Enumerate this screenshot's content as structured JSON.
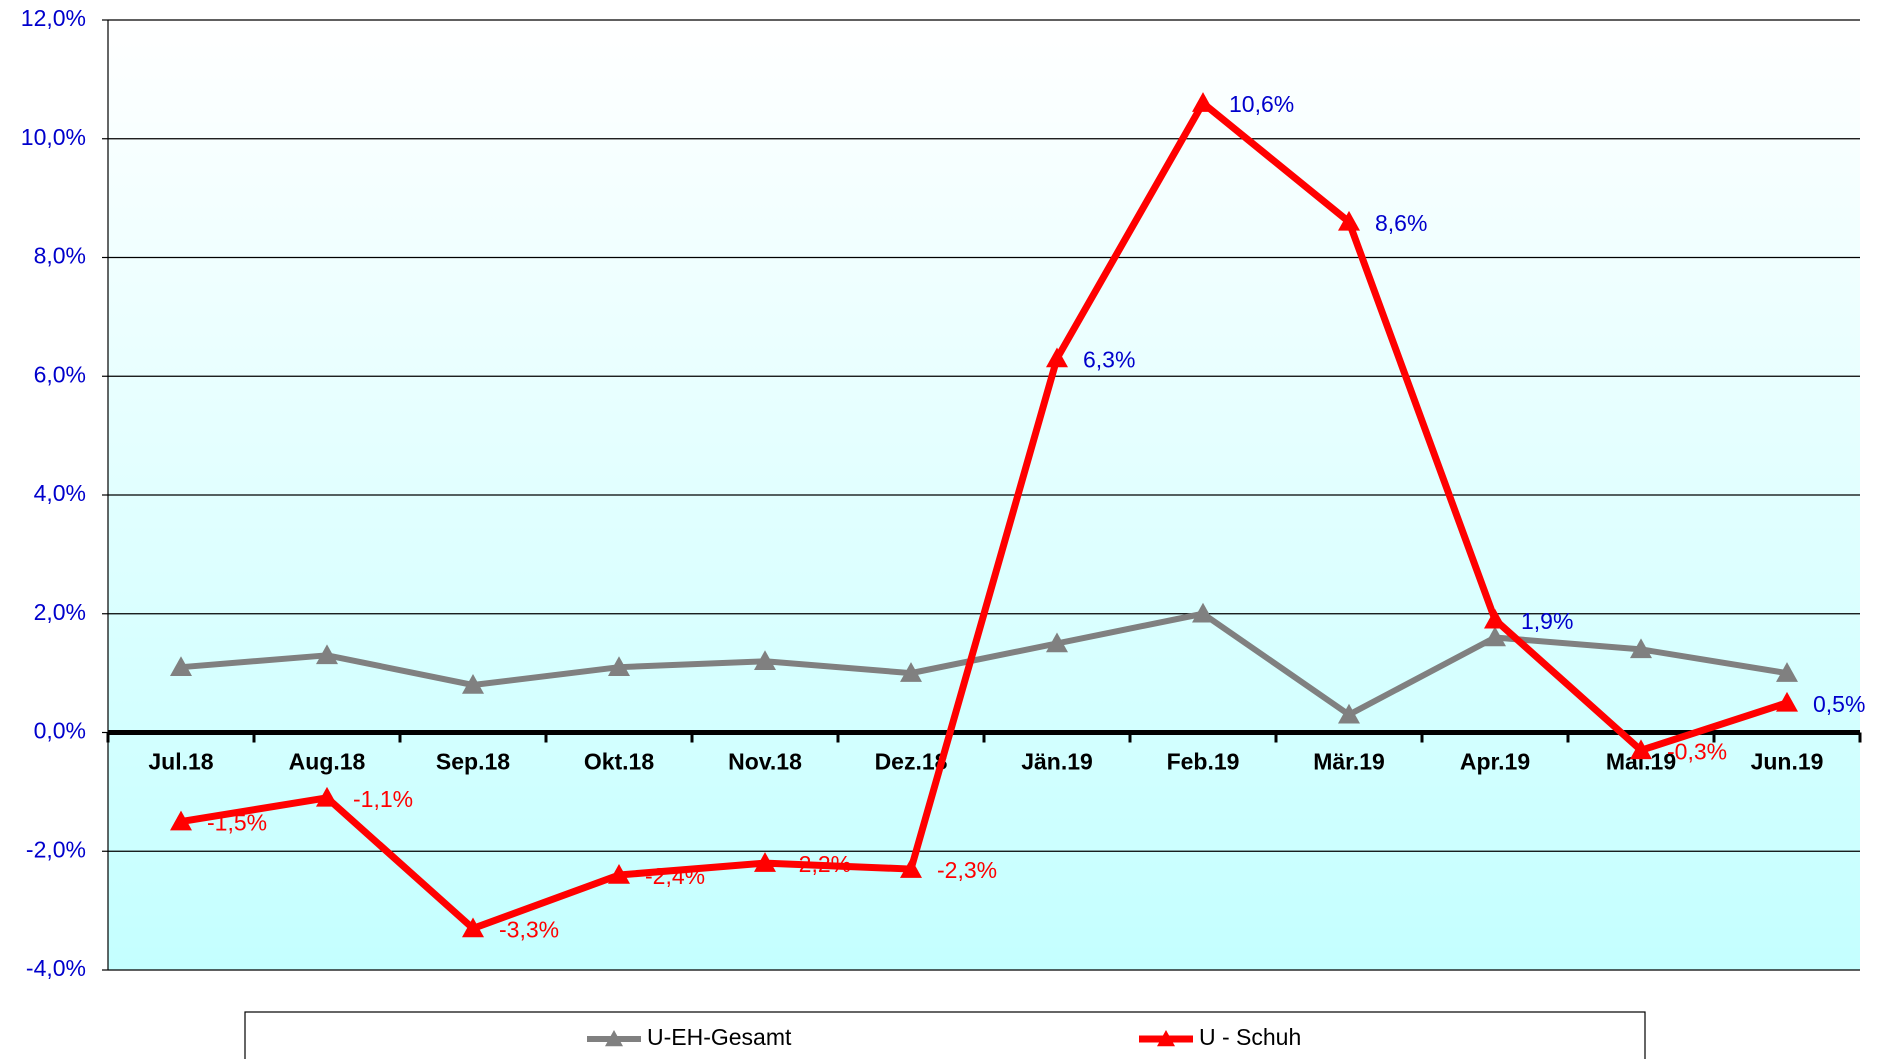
{
  "chart_data": {
    "type": "line",
    "categories": [
      "Jul.18",
      "Aug.18",
      "Sep.18",
      "Okt.18",
      "Nov.18",
      "Dez.18",
      "Jän.19",
      "Feb.19",
      "Mär.19",
      "Apr.19",
      "Mai.19",
      "Jun.19"
    ],
    "series": [
      {
        "name": "U-EH-Gesamt",
        "color": "#808080",
        "values": [
          1.1,
          1.3,
          0.8,
          1.1,
          1.2,
          1.0,
          1.5,
          2.0,
          0.3,
          1.6,
          1.4,
          1.0
        ]
      },
      {
        "name": "U - Schuh",
        "color": "#ff0000",
        "values": [
          -1.5,
          -1.1,
          -3.3,
          -2.4,
          -2.2,
          -2.3,
          6.3,
          10.6,
          8.6,
          1.9,
          -0.3,
          0.5
        ],
        "value_labels": [
          "-1,5%",
          "-1,1%",
          "-3,3%",
          "-2,4%",
          "-2,2%",
          "-2,3%",
          "6,3%",
          "10,6%",
          "8,6%",
          "1,9%",
          "-0,3%",
          "0,5%"
        ]
      }
    ],
    "ylim": [
      -4,
      12
    ],
    "yticks": [
      {
        "value": -4,
        "label": "-4,0%"
      },
      {
        "value": -2,
        "label": "-2,0%"
      },
      {
        "value": 0,
        "label": "0,0%"
      },
      {
        "value": 2,
        "label": "2,0%"
      },
      {
        "value": 4,
        "label": "4,0%"
      },
      {
        "value": 6,
        "label": "6,0%"
      },
      {
        "value": 8,
        "label": "8,0%"
      },
      {
        "value": 10,
        "label": "10,0%"
      },
      {
        "value": 12,
        "label": "12,0%"
      }
    ],
    "grid": true
  }
}
